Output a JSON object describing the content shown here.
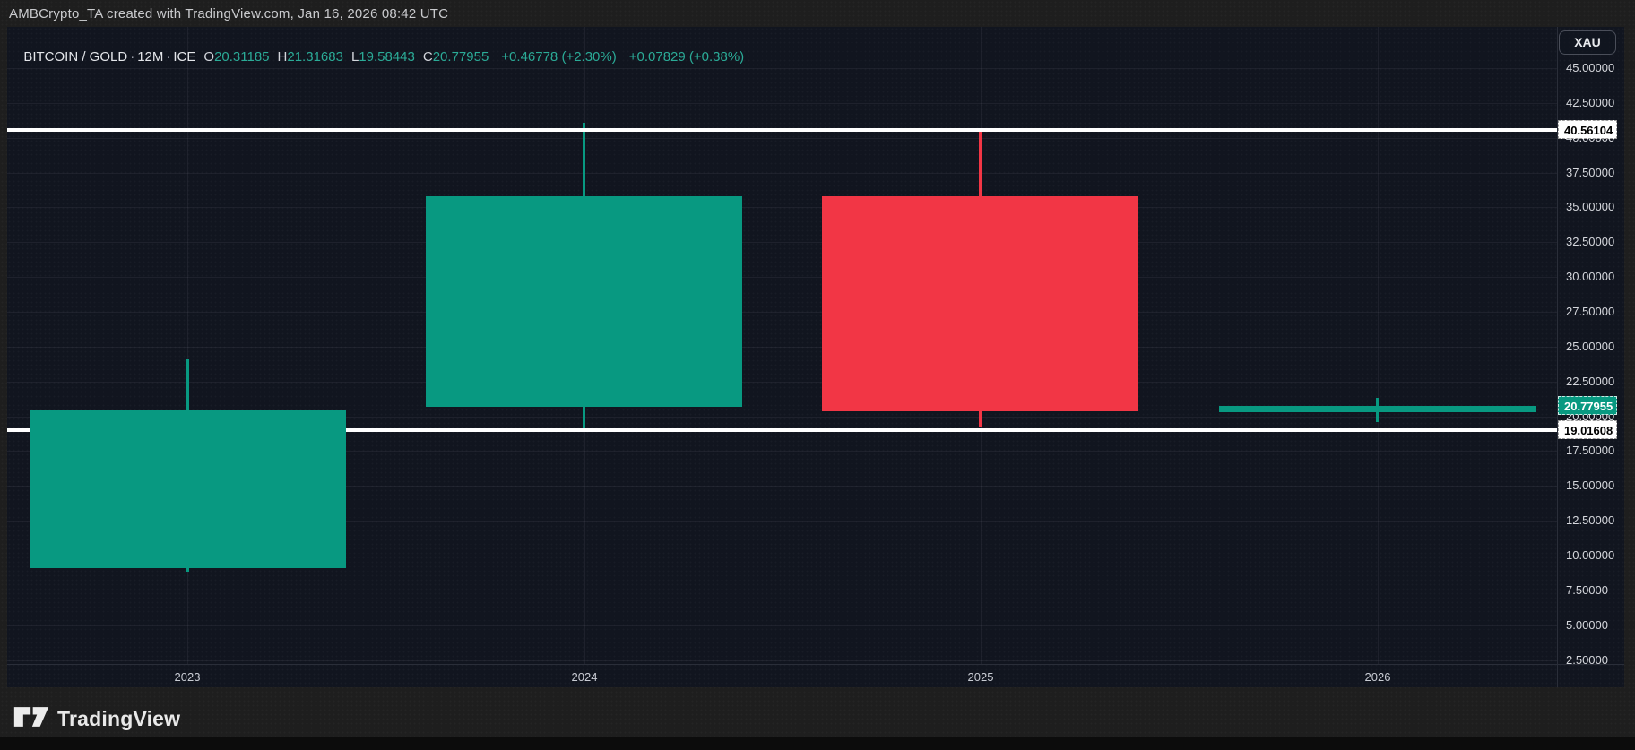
{
  "header": {
    "attribution": "AMBCrypto_TA created with TradingView.com, Jan 16, 2026 08:42 UTC"
  },
  "legend": {
    "symbol": "BITCOIN / GOLD",
    "separator": "·",
    "interval": "12M",
    "exchange": "ICE",
    "ohlc": [
      {
        "letter": "O",
        "value": "20.31185"
      },
      {
        "letter": "H",
        "value": "21.31683"
      },
      {
        "letter": "L",
        "value": "19.58443"
      },
      {
        "letter": "C",
        "value": "20.77955"
      }
    ],
    "change_abs": "+0.46778 (+2.30%)",
    "change_pct": "+0.07829 (+0.38%)"
  },
  "price_axis": {
    "unit_label": "XAU",
    "last_price_label": "20.77955",
    "line_labels": [
      "40.56104",
      "19.01608"
    ]
  },
  "time_axis": {
    "labels": [
      "2023",
      "2024",
      "2025",
      "2026"
    ]
  },
  "footer": {
    "brand": "TradingView"
  },
  "colors": {
    "up": "#089981",
    "down": "#f23645",
    "last_price_bg": "#089981",
    "line_color": "#ffffff",
    "line_label_bg": "#ffffff",
    "line_label_text": "#000000",
    "legend_value": "#2bab97",
    "axis_text": "#d6d8dd",
    "chart_bg": "#11151f",
    "outer_bg": "#1e1e1e"
  },
  "chart_data": {
    "type": "candlestick",
    "title": "BITCOIN / GOLD",
    "interval": "12M",
    "exchange": "ICE",
    "price_unit": "XAU",
    "categories": [
      "2023",
      "2024",
      "2025",
      "2026"
    ],
    "series": [
      {
        "year": "2023",
        "open": 9.1,
        "high": 24.1,
        "low": 8.85,
        "close": 20.4
      },
      {
        "year": "2024",
        "open": 20.7,
        "high": 41.1,
        "low": 19.05,
        "close": 35.8
      },
      {
        "year": "2025",
        "open": 35.8,
        "high": 40.45,
        "low": 19.2,
        "close": 20.35
      },
      {
        "year": "2026",
        "open": 20.31185,
        "high": 21.31683,
        "low": 19.58443,
        "close": 20.77955
      }
    ],
    "last_price": {
      "value": 20.77955,
      "label": "20.77955"
    },
    "horizontal_lines": [
      {
        "value": 40.56104,
        "label": "40.56104"
      },
      {
        "value": 19.01608,
        "label": "19.01608"
      }
    ],
    "y_ticks": [
      {
        "label": "45.00000",
        "value": 45.0
      },
      {
        "label": "42.50000",
        "value": 42.5
      },
      {
        "label": "40.00000",
        "value": 40.0
      },
      {
        "label": "37.50000",
        "value": 37.5
      },
      {
        "label": "35.00000",
        "value": 35.0
      },
      {
        "label": "32.50000",
        "value": 32.5
      },
      {
        "label": "30.00000",
        "value": 30.0
      },
      {
        "label": "27.50000",
        "value": 27.5
      },
      {
        "label": "25.00000",
        "value": 25.0
      },
      {
        "label": "22.50000",
        "value": 22.5
      },
      {
        "label": "20.00000",
        "value": 20.0
      },
      {
        "label": "17.50000",
        "value": 17.5
      },
      {
        "label": "15.00000",
        "value": 15.0
      },
      {
        "label": "12.50000",
        "value": 12.5
      },
      {
        "label": "10.00000",
        "value": 10.0
      },
      {
        "label": "7.50000",
        "value": 7.5
      },
      {
        "label": "5.00000",
        "value": 5.0
      },
      {
        "label": "2.50000",
        "value": 2.5
      }
    ],
    "y_visible_range": [
      1.5,
      46.5
    ],
    "grid": true,
    "legend_position": "top-left"
  }
}
